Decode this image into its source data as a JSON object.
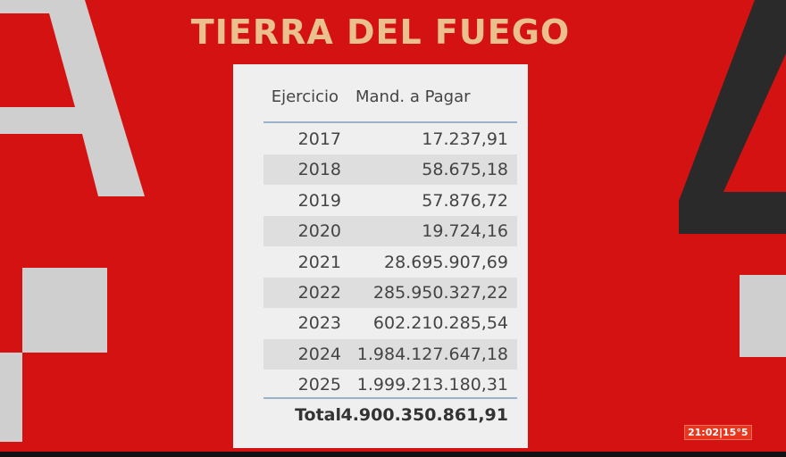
{
  "title": "TIERRA DEL FUEGO",
  "table": {
    "headers": [
      "Ejercicio",
      "Mand. a Pagar"
    ],
    "rows": [
      {
        "year": "2017",
        "amount": "17.237,91"
      },
      {
        "year": "2018",
        "amount": "58.675,18"
      },
      {
        "year": "2019",
        "amount": "57.876,72"
      },
      {
        "year": "2020",
        "amount": "19.724,16"
      },
      {
        "year": "2021",
        "amount": "28.695.907,69"
      },
      {
        "year": "2022",
        "amount": "285.950.327,22"
      },
      {
        "year": "2023",
        "amount": "602.210.285,54"
      },
      {
        "year": "2024",
        "amount": "1.984.127.647,18"
      },
      {
        "year": "2025",
        "amount": "1.999.213.180,31"
      }
    ],
    "total_label": "Total",
    "total_value": "4.900.350.861,91"
  },
  "clock": "21:02|15°5",
  "colors": {
    "background": "#d41212",
    "title": "#e9c08e",
    "panel": "#efefef"
  }
}
